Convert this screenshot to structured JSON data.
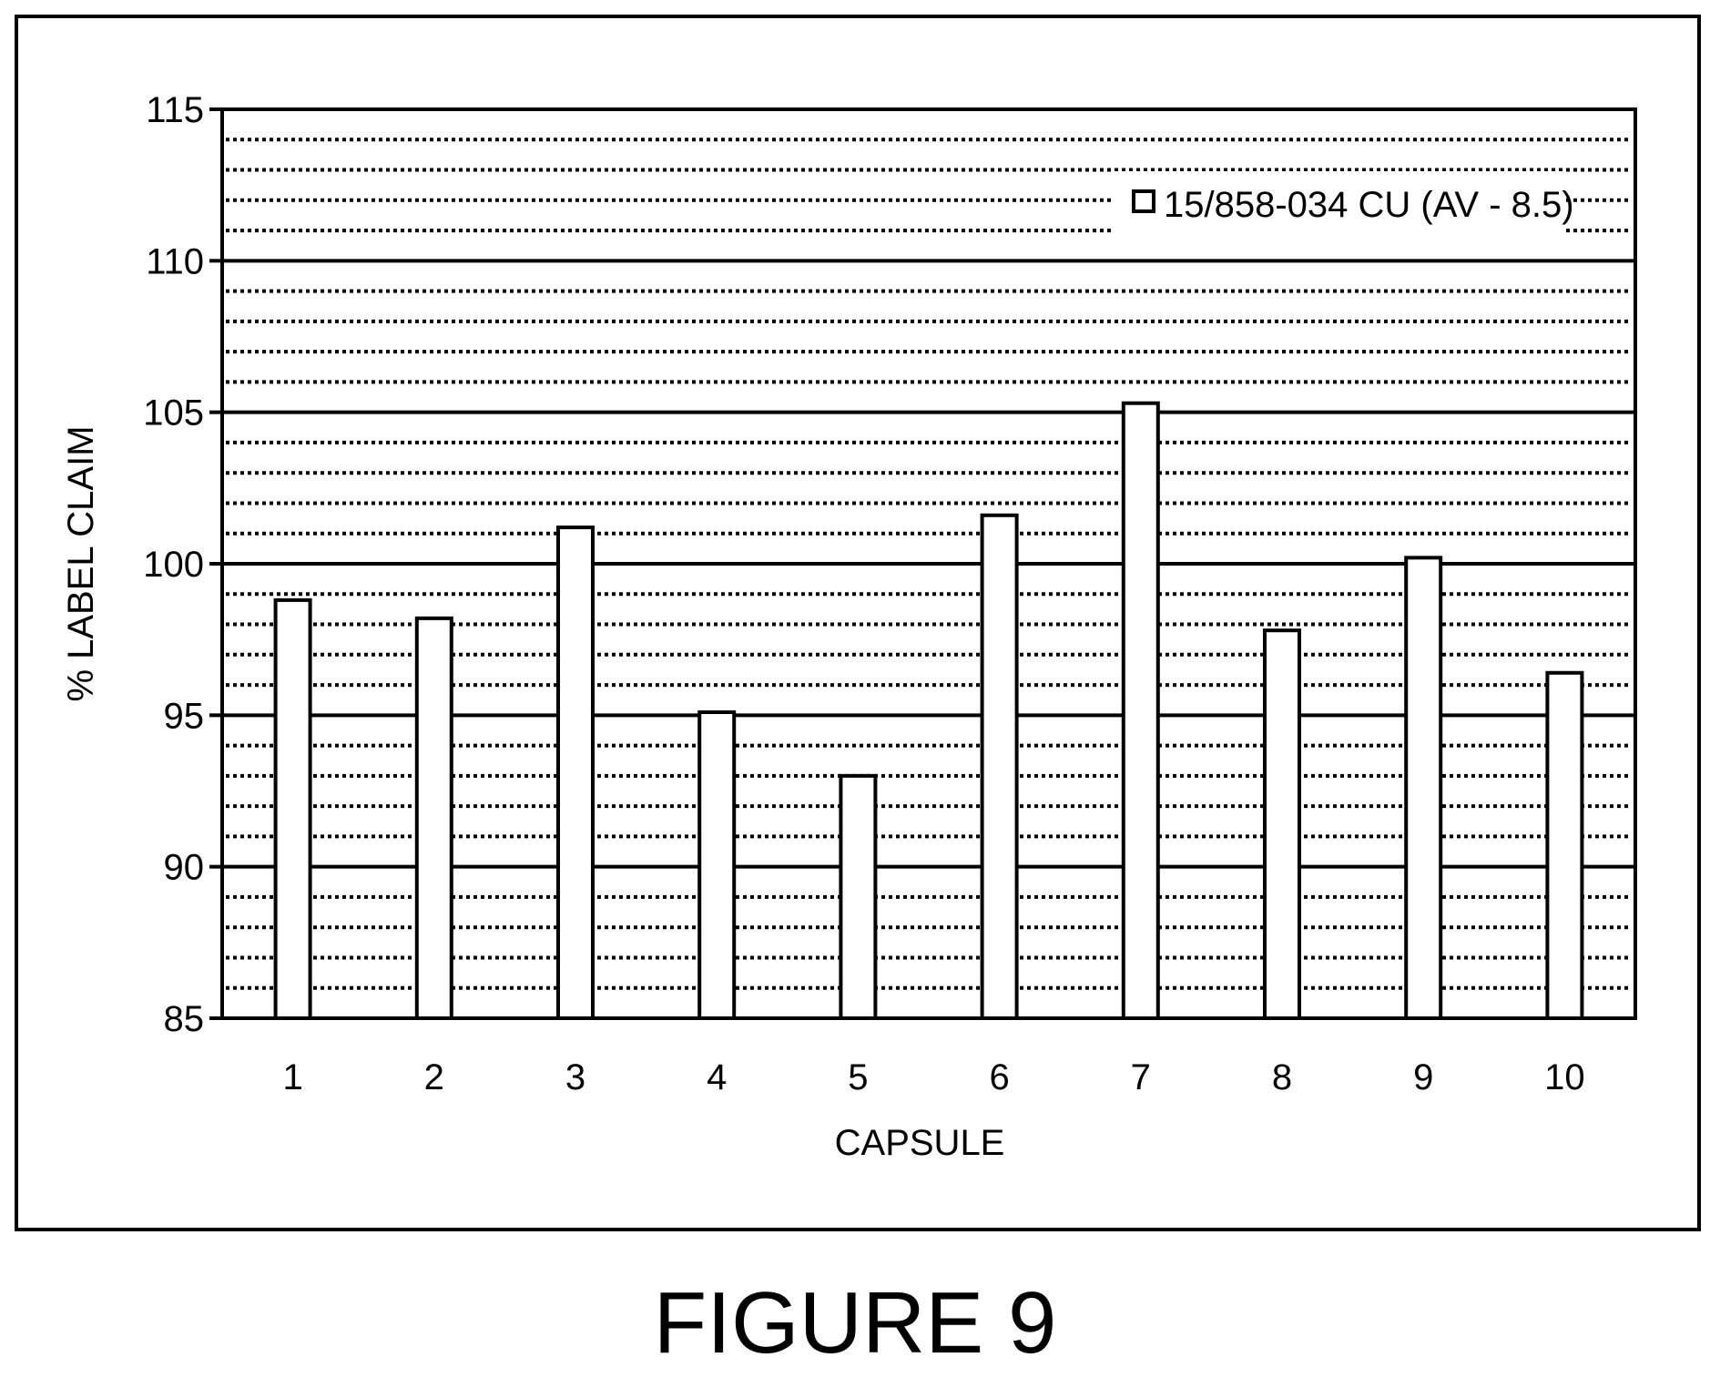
{
  "figure_caption": "FIGURE 9",
  "chart_data": {
    "type": "bar",
    "title": "",
    "xlabel": "CAPSULE",
    "ylabel": "% LABEL CLAIM",
    "categories": [
      "1",
      "2",
      "3",
      "4",
      "5",
      "6",
      "7",
      "8",
      "9",
      "10"
    ],
    "series": [
      {
        "name": "15/858-034 CU (AV - 8.5)",
        "values": [
          98.8,
          98.2,
          101.2,
          95.1,
          93.0,
          101.6,
          105.3,
          97.8,
          100.2,
          96.4
        ]
      }
    ],
    "ylim": [
      85,
      115
    ],
    "yticks": [
      "85",
      "90",
      "95",
      "100",
      "105",
      "110",
      "115"
    ],
    "major_grid_step": 5,
    "minor_grid_step": 1,
    "grid": true,
    "legend_position": "top-right",
    "colors": {
      "bar_fill": "#ffffff",
      "bar_stroke": "#000000",
      "grid": "#000000"
    }
  }
}
